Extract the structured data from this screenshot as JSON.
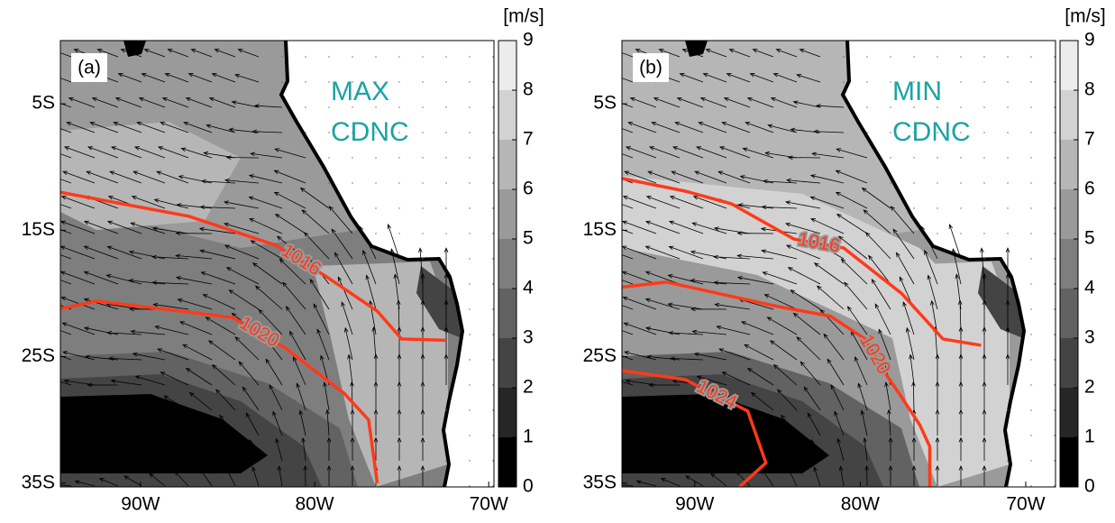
{
  "panels": [
    {
      "label": "(a)",
      "annotation": [
        "MAX",
        "CDNC"
      ],
      "xlim": [
        -94.6,
        -69.7
      ],
      "ylim": [
        -35.3,
        0
      ],
      "xticks": [
        {
          "value": -90,
          "label": "90W"
        },
        {
          "value": -80,
          "label": "80W"
        },
        {
          "value": -70,
          "label": "70W"
        }
      ],
      "yticks": [
        {
          "value": -5,
          "label": "5S"
        },
        {
          "value": -15,
          "label": "15S"
        },
        {
          "value": -25,
          "label": "25S"
        },
        {
          "value": -35,
          "label": "35S"
        }
      ],
      "colorbar": {
        "unit": "[m/s]",
        "lim": [
          0,
          9
        ],
        "ticks": [
          0,
          1,
          2,
          3,
          4,
          5,
          6,
          7,
          8,
          9
        ],
        "colors": [
          "#000000",
          "#262626",
          "#444444",
          "#626262",
          "#7e7e7e",
          "#9a9a9a",
          "#b6b6b6",
          "#d2d2d2",
          "#ececec"
        ]
      },
      "isobars": [
        {
          "level": 1016,
          "lon": [
            -94.6,
            -87.2,
            -82.2,
            -79.4,
            -76.4,
            -75.0,
            -72.5
          ],
          "lat": [
            -12.0,
            -13.9,
            -16.2,
            -18.6,
            -21.4,
            -23.6,
            -23.7
          ]
        },
        {
          "level": 1020,
          "lon": [
            -94.6,
            -92.5,
            -84.7,
            -81.7,
            -78.3,
            -76.9,
            -76.4
          ],
          "lat": [
            -21.2,
            -20.6,
            -21.9,
            -24.3,
            -27.9,
            -30.0,
            -35.0
          ]
        }
      ]
    },
    {
      "label": "(b)",
      "annotation": [
        "MIN",
        "CDNC"
      ],
      "xlim": [
        -94.4,
        -68.2
      ],
      "ylim": [
        -35.3,
        0
      ],
      "xticks": [
        {
          "value": -90,
          "label": "90W"
        },
        {
          "value": -80,
          "label": "80W"
        },
        {
          "value": -70,
          "label": "70W"
        }
      ],
      "yticks": [
        {
          "value": -5,
          "label": "5S"
        },
        {
          "value": -15,
          "label": "15S"
        },
        {
          "value": -25,
          "label": "25S"
        },
        {
          "value": -35,
          "label": "35S"
        }
      ],
      "colorbar": {
        "unit": "[m/s]",
        "lim": [
          0,
          9
        ],
        "ticks": [
          0,
          1,
          2,
          3,
          4,
          5,
          6,
          7,
          8,
          9
        ],
        "colors": [
          "#000000",
          "#262626",
          "#444444",
          "#626262",
          "#7e7e7e",
          "#9a9a9a",
          "#b6b6b6",
          "#d2d2d2",
          "#ececec"
        ]
      },
      "isobars": [
        {
          "level": 1016,
          "lon": [
            -94.4,
            -90.6,
            -87.8,
            -84.0,
            -81.0,
            -77.5,
            -75.0,
            -72.7
          ],
          "lat": [
            -10.9,
            -11.9,
            -12.9,
            -15.7,
            -16.4,
            -20.0,
            -23.6,
            -24.1
          ]
        },
        {
          "level": 1020,
          "lon": [
            -94.4,
            -91.7,
            -85.1,
            -81.8,
            -79.7,
            -78.6,
            -77.5,
            -76.4,
            -75.8,
            -75.8
          ],
          "lat": [
            -19.5,
            -19.1,
            -21.0,
            -21.8,
            -23.6,
            -26.1,
            -28.2,
            -30.4,
            -32.1,
            -35.3
          ]
        },
        {
          "level": 1024,
          "lon": [
            -94.4,
            -90.6,
            -86.8,
            -85.7,
            -87.3
          ],
          "lat": [
            -26.1,
            -26.8,
            -29.3,
            -33.4,
            -35.3
          ]
        }
      ]
    }
  ]
}
